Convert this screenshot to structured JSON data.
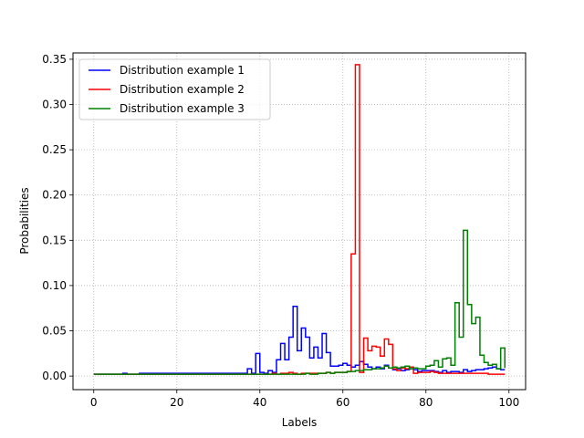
{
  "chart_data": {
    "type": "line",
    "step": "post",
    "title": "",
    "xlabel": "Labels",
    "ylabel": "Probabilities",
    "xlim": [
      -5,
      104
    ],
    "ylim": [
      -0.015,
      0.357
    ],
    "xticks": [
      0,
      20,
      40,
      60,
      80,
      100
    ],
    "xtick_labels": [
      "0",
      "20",
      "40",
      "60",
      "80",
      "100"
    ],
    "yticks": [
      0.0,
      0.05,
      0.1,
      0.15,
      0.2,
      0.25,
      0.3,
      0.35
    ],
    "ytick_labels": [
      "0.00",
      "0.05",
      "0.10",
      "0.15",
      "0.20",
      "0.25",
      "0.30",
      "0.35"
    ],
    "grid": true,
    "legend_position": "top-left",
    "x": [
      0,
      1,
      2,
      3,
      4,
      5,
      6,
      7,
      8,
      9,
      10,
      11,
      12,
      13,
      14,
      15,
      16,
      17,
      18,
      19,
      20,
      21,
      22,
      23,
      24,
      25,
      26,
      27,
      28,
      29,
      30,
      31,
      32,
      33,
      34,
      35,
      36,
      37,
      38,
      39,
      40,
      41,
      42,
      43,
      44,
      45,
      46,
      47,
      48,
      49,
      50,
      51,
      52,
      53,
      54,
      55,
      56,
      57,
      58,
      59,
      60,
      61,
      62,
      63,
      64,
      65,
      66,
      67,
      68,
      69,
      70,
      71,
      72,
      73,
      74,
      75,
      76,
      77,
      78,
      79,
      80,
      81,
      82,
      83,
      84,
      85,
      86,
      87,
      88,
      89,
      90,
      91,
      92,
      93,
      94,
      95,
      96,
      97,
      98,
      99
    ],
    "series": [
      {
        "name": "Distribution example 1",
        "color": "#0000ff",
        "values": [
          0.002,
          0.002,
          0.002,
          0.002,
          0.002,
          0.002,
          0.002,
          0.003,
          0.002,
          0.002,
          0.002,
          0.003,
          0.003,
          0.003,
          0.003,
          0.003,
          0.003,
          0.003,
          0.003,
          0.003,
          0.003,
          0.003,
          0.003,
          0.003,
          0.003,
          0.003,
          0.003,
          0.003,
          0.003,
          0.003,
          0.003,
          0.003,
          0.003,
          0.003,
          0.003,
          0.003,
          0.003,
          0.008,
          0.003,
          0.025,
          0.004,
          0.003,
          0.006,
          0.004,
          0.018,
          0.036,
          0.018,
          0.043,
          0.077,
          0.028,
          0.053,
          0.043,
          0.02,
          0.032,
          0.02,
          0.047,
          0.026,
          0.011,
          0.011,
          0.012,
          0.014,
          0.012,
          0.01,
          0.012,
          0.016,
          0.013,
          0.01,
          0.008,
          0.01,
          0.008,
          0.012,
          0.009,
          0.007,
          0.008,
          0.006,
          0.007,
          0.008,
          0.007,
          0.005,
          0.006,
          0.006,
          0.006,
          0.005,
          0.004,
          0.006,
          0.004,
          0.005,
          0.005,
          0.004,
          0.007,
          0.005,
          0.006,
          0.007,
          0.007,
          0.008,
          0.009,
          0.01,
          0.008,
          0.007,
          0.007
        ]
      },
      {
        "name": "Distribution example 2",
        "color": "#ff0000",
        "values": [
          0.002,
          0.002,
          0.002,
          0.002,
          0.002,
          0.002,
          0.002,
          0.002,
          0.002,
          0.002,
          0.002,
          0.002,
          0.002,
          0.002,
          0.002,
          0.002,
          0.002,
          0.002,
          0.002,
          0.002,
          0.002,
          0.002,
          0.002,
          0.002,
          0.002,
          0.002,
          0.002,
          0.002,
          0.002,
          0.002,
          0.002,
          0.002,
          0.002,
          0.002,
          0.002,
          0.002,
          0.002,
          0.002,
          0.002,
          0.002,
          0.002,
          0.002,
          0.002,
          0.003,
          0.002,
          0.003,
          0.003,
          0.004,
          0.003,
          0.002,
          0.003,
          0.003,
          0.003,
          0.003,
          0.003,
          0.003,
          0.004,
          0.003,
          0.004,
          0.004,
          0.004,
          0.005,
          0.135,
          0.344,
          0.004,
          0.042,
          0.028,
          0.033,
          0.032,
          0.022,
          0.041,
          0.035,
          0.008,
          0.006,
          0.009,
          0.008,
          0.01,
          0.003,
          0.004,
          0.004,
          0.004,
          0.005,
          0.004,
          0.003,
          0.003,
          0.003,
          0.003,
          0.003,
          0.003,
          0.003,
          0.003,
          0.003,
          0.003,
          0.003,
          0.003,
          0.002,
          0.002,
          0.002,
          0.002,
          0.002
        ]
      },
      {
        "name": "Distribution example 3",
        "color": "#008000",
        "values": [
          0.002,
          0.002,
          0.002,
          0.002,
          0.002,
          0.002,
          0.002,
          0.002,
          0.002,
          0.002,
          0.002,
          0.002,
          0.002,
          0.002,
          0.002,
          0.002,
          0.002,
          0.002,
          0.002,
          0.002,
          0.002,
          0.002,
          0.002,
          0.002,
          0.002,
          0.002,
          0.002,
          0.002,
          0.002,
          0.002,
          0.002,
          0.002,
          0.002,
          0.002,
          0.002,
          0.002,
          0.002,
          0.002,
          0.002,
          0.002,
          0.002,
          0.002,
          0.002,
          0.002,
          0.002,
          0.002,
          0.002,
          0.002,
          0.002,
          0.002,
          0.002,
          0.003,
          0.002,
          0.002,
          0.003,
          0.003,
          0.004,
          0.003,
          0.004,
          0.004,
          0.004,
          0.005,
          0.005,
          0.006,
          0.006,
          0.007,
          0.007,
          0.008,
          0.008,
          0.009,
          0.011,
          0.009,
          0.01,
          0.009,
          0.01,
          0.011,
          0.008,
          0.009,
          0.008,
          0.008,
          0.011,
          0.012,
          0.017,
          0.01,
          0.019,
          0.02,
          0.012,
          0.081,
          0.043,
          0.161,
          0.079,
          0.058,
          0.065,
          0.023,
          0.015,
          0.012,
          0.013,
          0.008,
          0.031,
          0.009
        ]
      }
    ]
  }
}
